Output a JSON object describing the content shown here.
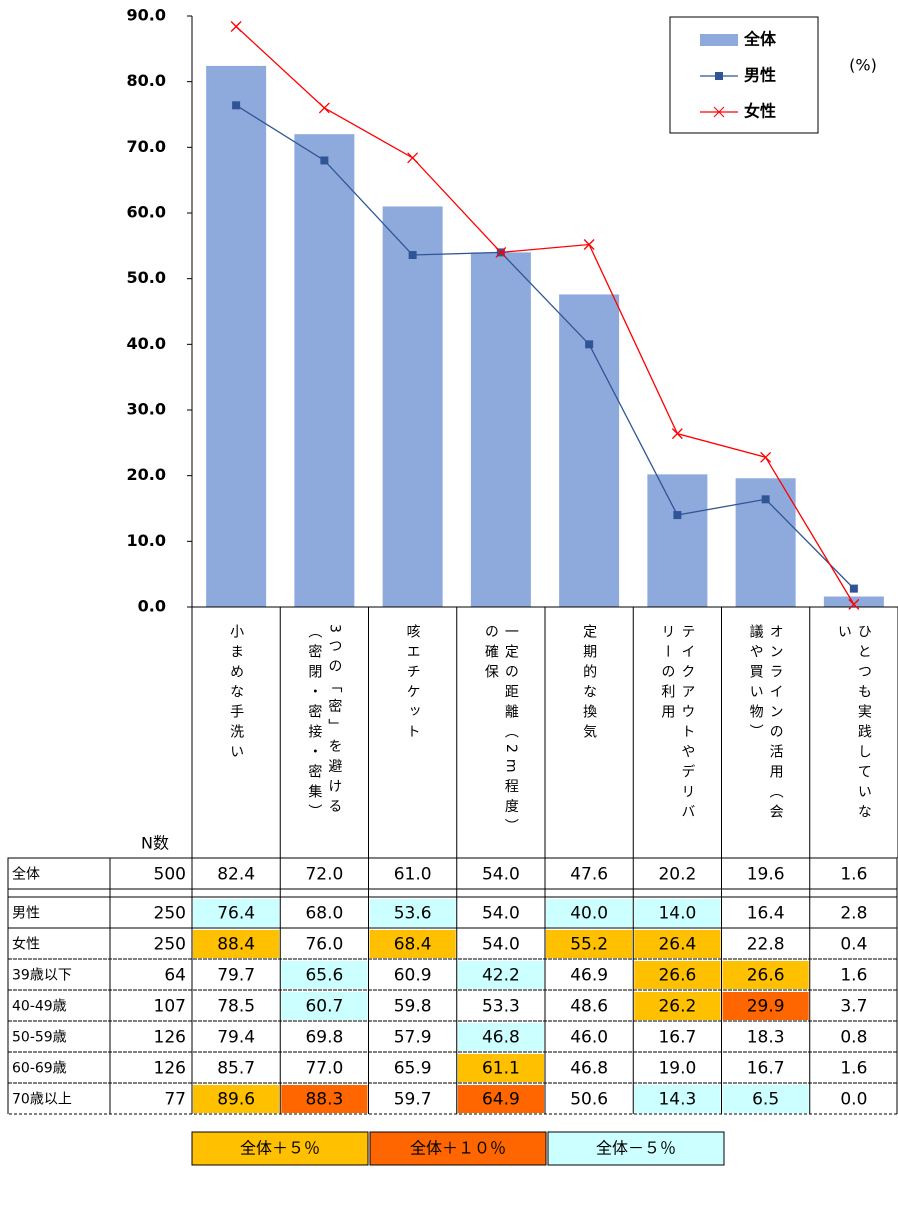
{
  "chart_data": {
    "type": "bar_line",
    "unit_label": "(%)",
    "categories": [
      "小まめな手洗い",
      "3つの「密」を避ける（密閉・密接・密集）",
      "咳エチケット",
      "一定の距離（2m程度）の確保",
      "定期的な換気",
      "テイクアウトやデリバリーの利用",
      "オンラインの活用（会議や買い物）",
      "ひとつも実践していない"
    ],
    "series": [
      {
        "name": "全体",
        "kind": "bar",
        "color": "#8eaadc",
        "values": [
          82.4,
          72.0,
          61.0,
          54.0,
          47.6,
          20.2,
          19.6,
          1.6
        ]
      },
      {
        "name": "男性",
        "kind": "line",
        "marker": "square",
        "color": "#2f5597",
        "values": [
          76.4,
          68.0,
          53.6,
          54.0,
          40.0,
          14.0,
          16.4,
          2.8
        ]
      },
      {
        "name": "女性",
        "kind": "line",
        "marker": "x",
        "color": "#ff0000",
        "values": [
          88.4,
          76.0,
          68.4,
          54.0,
          55.2,
          26.4,
          22.8,
          0.4
        ]
      }
    ],
    "ylim": [
      0,
      90
    ],
    "yticks": [
      {
        "value": 0,
        "label": "0.0"
      },
      {
        "value": 10,
        "label": "10.0"
      },
      {
        "value": 20,
        "label": "20.0"
      },
      {
        "value": 30,
        "label": "30.0"
      },
      {
        "value": 40,
        "label": "40.0"
      },
      {
        "value": 50,
        "label": "50.0"
      },
      {
        "value": 60,
        "label": "60.0"
      },
      {
        "value": 70,
        "label": "70.0"
      },
      {
        "value": 80,
        "label": "80.0"
      },
      {
        "value": 90,
        "label": "90.0"
      }
    ],
    "legend": "top-right"
  },
  "table": {
    "n_header": "N数",
    "rows": [
      {
        "label": "全体",
        "n": "500",
        "values": [
          "82.4",
          "72.0",
          "61.0",
          "54.0",
          "47.6",
          "20.2",
          "19.6",
          "1.6"
        ],
        "colors": [
          null,
          null,
          null,
          null,
          null,
          null,
          null,
          null
        ]
      },
      {
        "label": "男性",
        "n": "250",
        "values": [
          "76.4",
          "68.0",
          "53.6",
          "54.0",
          "40.0",
          "14.0",
          "16.4",
          "2.8"
        ],
        "colors": [
          "#ccffff",
          null,
          "#ccffff",
          null,
          "#ccffff",
          "#ccffff",
          null,
          null
        ]
      },
      {
        "label": "女性",
        "n": "250",
        "values": [
          "88.4",
          "76.0",
          "68.4",
          "54.0",
          "55.2",
          "26.4",
          "22.8",
          "0.4"
        ],
        "colors": [
          "#ffc000",
          null,
          "#ffc000",
          null,
          "#ffc000",
          "#ffc000",
          null,
          null
        ]
      },
      {
        "label": "39歳以下",
        "n": "64",
        "values": [
          "79.7",
          "65.6",
          "60.9",
          "42.2",
          "46.9",
          "26.6",
          "26.6",
          "1.6"
        ],
        "colors": [
          null,
          "#ccffff",
          null,
          "#ccffff",
          null,
          "#ffc000",
          "#ffc000",
          null
        ]
      },
      {
        "label": "40-49歳",
        "n": "107",
        "values": [
          "78.5",
          "60.7",
          "59.8",
          "53.3",
          "48.6",
          "26.2",
          "29.9",
          "3.7"
        ],
        "colors": [
          null,
          "#ccffff",
          null,
          null,
          null,
          "#ffc000",
          "#ff6600",
          null
        ]
      },
      {
        "label": "50-59歳",
        "n": "126",
        "values": [
          "79.4",
          "69.8",
          "57.9",
          "46.8",
          "46.0",
          "16.7",
          "18.3",
          "0.8"
        ],
        "colors": [
          null,
          null,
          null,
          "#ccffff",
          null,
          null,
          null,
          null
        ]
      },
      {
        "label": "60-69歳",
        "n": "126",
        "values": [
          "85.7",
          "77.0",
          "65.9",
          "61.1",
          "46.8",
          "19.0",
          "16.7",
          "1.6"
        ],
        "colors": [
          null,
          null,
          null,
          "#ffc000",
          null,
          null,
          null,
          null
        ]
      },
      {
        "label": "70歳以上",
        "n": "77",
        "values": [
          "89.6",
          "88.3",
          "59.7",
          "64.9",
          "50.6",
          "14.3",
          "6.5",
          "0.0"
        ],
        "colors": [
          "#ffc000",
          "#ff6600",
          null,
          "#ff6600",
          null,
          "#ccffff",
          "#ccffff",
          null
        ]
      }
    ],
    "legend": [
      {
        "label": "全体＋５％",
        "color": "#ffc000"
      },
      {
        "label": "全体＋１０％",
        "color": "#ff6600"
      },
      {
        "label": "全体－５％",
        "color": "#ccffff"
      }
    ]
  }
}
